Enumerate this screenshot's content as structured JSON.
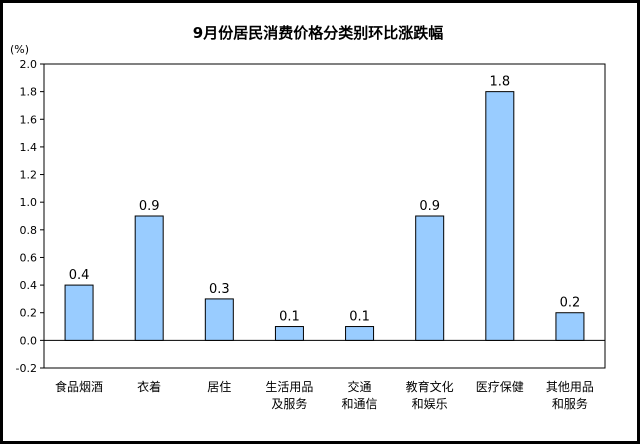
{
  "chart_data": {
    "type": "bar",
    "title": "9月份居民消费价格分类别环比涨跌幅",
    "ylabel": "(%)",
    "ylim": [
      -0.2,
      2.0
    ],
    "yticks": [
      "2.0",
      "1.8",
      "1.6",
      "1.4",
      "1.2",
      "1.0",
      "0.8",
      "0.6",
      "0.4",
      "0.2",
      "0.0",
      "-0.2"
    ],
    "categories": [
      [
        "食品烟酒"
      ],
      [
        "衣着"
      ],
      [
        "居住"
      ],
      [
        "生活用品",
        "及服务"
      ],
      [
        "交通",
        "和通信"
      ],
      [
        "教育文化",
        "和娱乐"
      ],
      [
        "医疗保健"
      ],
      [
        "其他用品",
        "和服务"
      ]
    ],
    "values": [
      0.4,
      0.9,
      0.3,
      0.1,
      0.1,
      0.9,
      1.8,
      0.2
    ],
    "data_labels": [
      "0.4",
      "0.9",
      "0.3",
      "0.1",
      "0.1",
      "0.9",
      "1.8",
      "0.2"
    ],
    "bar_color": "#99ccff",
    "bar_border": "#000000",
    "grid": false,
    "legend": "none"
  }
}
